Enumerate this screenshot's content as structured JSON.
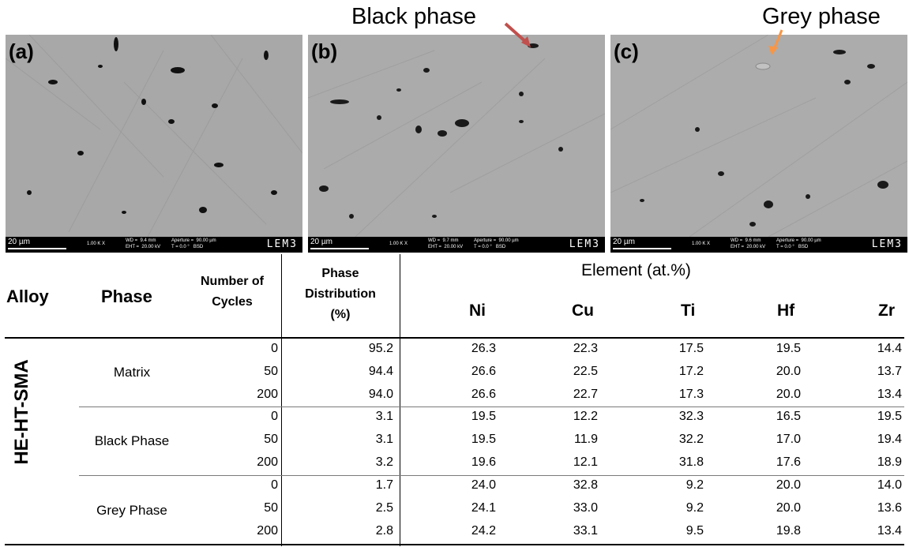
{
  "panels": [
    {
      "label": "(a)",
      "scale": "20 µm",
      "mag": "1.00 K X",
      "wd": "WD =  9.4 mm",
      "ap": "Aperture =  90.00 µm",
      "eht": "EHT =  20.00 kV",
      "t": "T = 0.0 °",
      "det": "BSD",
      "brand": "LEM3"
    },
    {
      "label": "(b)",
      "scale": "20 µm",
      "mag": "1.00 K X",
      "wd": "WD =  9.7 mm",
      "ap": "Aperture =  90.00 µm",
      "eht": "EHT =  20.00 kV",
      "t": "T = 0.0 °",
      "det": "BSD",
      "brand": "LEM3"
    },
    {
      "label": "(c)",
      "scale": "20 µm",
      "mag": "1.00 K X",
      "wd": "WD =  9.6 mm",
      "ap": "Aperture =  90.00 µm",
      "eht": "EHT =  20.00 kV",
      "t": "T = 0.0 °",
      "det": "BSD",
      "brand": "LEM3"
    }
  ],
  "callouts": {
    "black": "Black phase",
    "grey": "Grey phase",
    "black_arrow_color": "#c0504d",
    "grey_arrow_color": "#f79646"
  },
  "table": {
    "headers": {
      "alloy": "Alloy",
      "phase": "Phase",
      "cycles": [
        "Number of",
        "Cycles"
      ],
      "dist": [
        "Phase",
        "Distribution",
        "(%)"
      ],
      "element_group": "Element (at.%)",
      "elements": [
        "Ni",
        "Cu",
        "Ti",
        "Hf",
        "Zr"
      ]
    },
    "alloy_name": "HE-HT-SMA",
    "groups": [
      {
        "phase": "Matrix",
        "rows": [
          {
            "cycles": "0",
            "dist": "95.2",
            "Ni": "26.3",
            "Cu": "22.3",
            "Ti": "17.5",
            "Hf": "19.5",
            "Zr": "14.4"
          },
          {
            "cycles": "50",
            "dist": "94.4",
            "Ni": "26.6",
            "Cu": "22.5",
            "Ti": "17.2",
            "Hf": "20.0",
            "Zr": "13.7"
          },
          {
            "cycles": "200",
            "dist": "94.0",
            "Ni": "26.6",
            "Cu": "22.7",
            "Ti": "17.3",
            "Hf": "20.0",
            "Zr": "13.4"
          }
        ]
      },
      {
        "phase": "Black Phase",
        "rows": [
          {
            "cycles": "0",
            "dist": "3.1",
            "Ni": "19.5",
            "Cu": "12.2",
            "Ti": "32.3",
            "Hf": "16.5",
            "Zr": "19.5"
          },
          {
            "cycles": "50",
            "dist": "3.1",
            "Ni": "19.5",
            "Cu": "11.9",
            "Ti": "32.2",
            "Hf": "17.0",
            "Zr": "19.4"
          },
          {
            "cycles": "200",
            "dist": "3.2",
            "Ni": "19.6",
            "Cu": "12.1",
            "Ti": "31.8",
            "Hf": "17.6",
            "Zr": "18.9"
          }
        ]
      },
      {
        "phase": "Grey Phase",
        "rows": [
          {
            "cycles": "0",
            "dist": "1.7",
            "Ni": "24.0",
            "Cu": "32.8",
            "Ti": "9.2",
            "Hf": "20.0",
            "Zr": "14.0"
          },
          {
            "cycles": "50",
            "dist": "2.5",
            "Ni": "24.1",
            "Cu": "33.0",
            "Ti": "9.2",
            "Hf": "20.0",
            "Zr": "13.6"
          },
          {
            "cycles": "200",
            "dist": "2.8",
            "Ni": "24.2",
            "Cu": "33.1",
            "Ti": "9.5",
            "Hf": "19.8",
            "Zr": "13.4"
          }
        ]
      }
    ]
  }
}
